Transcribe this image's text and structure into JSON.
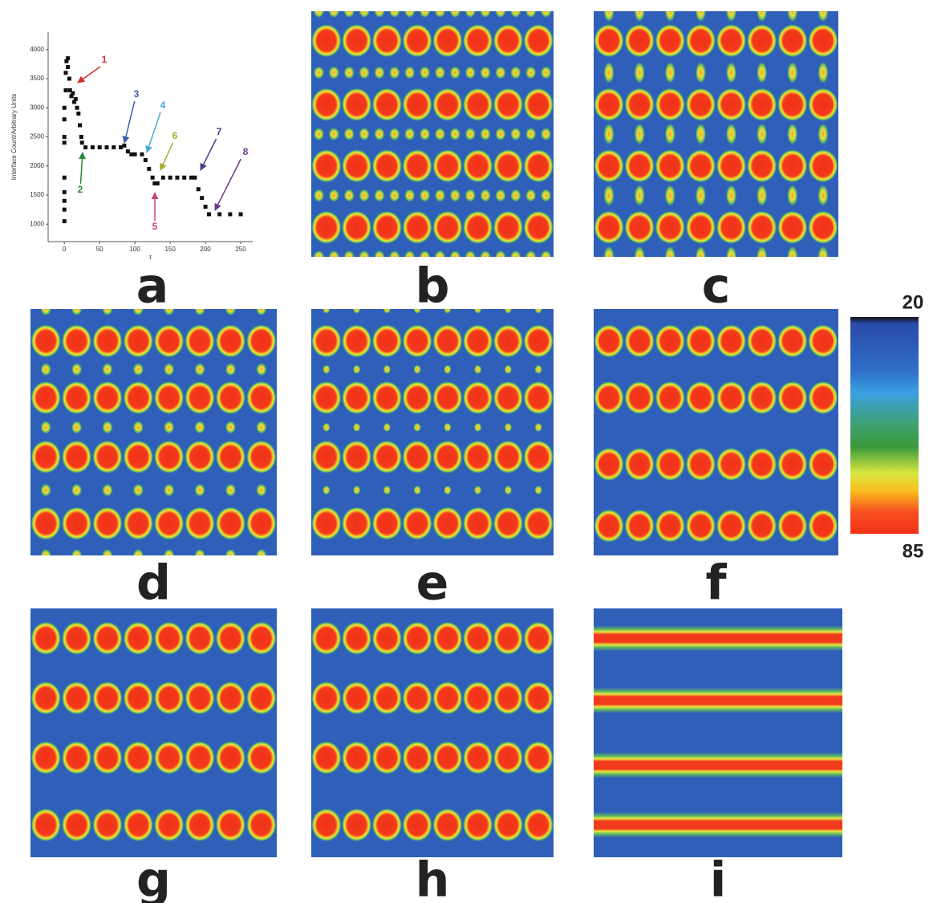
{
  "chart_data": {
    "type": "scatter",
    "xlabel": "τ",
    "ylabel": "Interface Count/Arbitrary Units",
    "x": [
      0,
      0,
      0,
      0,
      0,
      0,
      0,
      0,
      0,
      2,
      2,
      3,
      5,
      5,
      7,
      8,
      10,
      12,
      14,
      16,
      18,
      20,
      22,
      24,
      25,
      30,
      40,
      50,
      60,
      70,
      80,
      85,
      90,
      95,
      100,
      110,
      115,
      120,
      125,
      128,
      132,
      140,
      150,
      160,
      170,
      180,
      185,
      190,
      195,
      200,
      205,
      220,
      235,
      250
    ],
    "series": [
      {
        "color": "#111111",
        "values": [
          1050,
          1250,
          1400,
          1550,
          1800,
          2400,
          2500,
          2800,
          3000,
          3300,
          3600,
          3800,
          3850,
          3700,
          3500,
          3300,
          3200,
          3250,
          3100,
          3150,
          3000,
          2900,
          2700,
          2500,
          2400,
          2320,
          2320,
          2320,
          2320,
          2320,
          2320,
          2350,
          2250,
          2200,
          2200,
          2200,
          2100,
          1950,
          1800,
          1700,
          1700,
          1800,
          1800,
          1800,
          1800,
          1800,
          1800,
          1600,
          1450,
          1300,
          1170,
          1170,
          1170,
          1170
        ]
      }
    ],
    "xlim": [
      -23,
      267
    ],
    "ylim": [
      700,
      4300
    ],
    "xticks": [
      0,
      50,
      100,
      150,
      200,
      250
    ],
    "yticks": [
      1000,
      1500,
      2000,
      2500,
      3000,
      3500,
      4000
    ],
    "annotations": [
      {
        "text": "1",
        "color": "#d03030"
      },
      {
        "text": "2",
        "color": "#2a8a3a"
      },
      {
        "text": "3",
        "color": "#3b5bab"
      },
      {
        "text": "4",
        "color": "#4aa8d8"
      },
      {
        "text": "5",
        "color": "#d04070"
      },
      {
        "text": "6",
        "color": "#a8a830"
      },
      {
        "text": "7",
        "color": "#4a3a8a"
      },
      {
        "text": "8",
        "color": "#6a3a8a"
      }
    ],
    "colorbar": {
      "min": 20,
      "max": 85
    }
  },
  "panel_labels": [
    "a",
    "b",
    "c",
    "d",
    "e",
    "f",
    "g",
    "h",
    "i"
  ]
}
